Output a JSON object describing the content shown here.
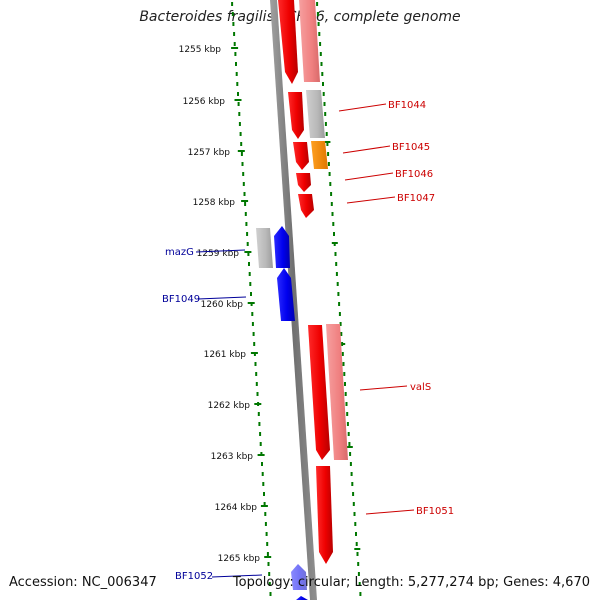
{
  "title": "Bacteroides fragilis YCH46, complete genome",
  "footer": {
    "accession": "Accession: NC_006347",
    "stats": "Topology: circular; Length: 5,277,274 bp; Genes: 4,670"
  },
  "ticks": [
    "1255 kbp",
    "1256 kbp",
    "1257 kbp",
    "1258 kbp",
    "1259 kbp",
    "1260 kbp",
    "1261 kbp",
    "1262 kbp",
    "1263 kbp",
    "1264 kbp",
    "1265 kbp"
  ],
  "genes": [
    {
      "label": "BF1044",
      "strand": "forward",
      "color": "#cc0000"
    },
    {
      "label": "BF1045",
      "strand": "forward",
      "color": "#cc0000"
    },
    {
      "label": "BF1046",
      "strand": "forward",
      "color": "#cc0000"
    },
    {
      "label": "BF1047",
      "strand": "forward",
      "color": "#cc0000"
    },
    {
      "label": "mazG",
      "strand": "reverse",
      "color": "#000099"
    },
    {
      "label": "BF1049",
      "strand": "reverse",
      "color": "#000099"
    },
    {
      "label": "valS",
      "strand": "forward",
      "color": "#cc0000"
    },
    {
      "label": "BF1051",
      "strand": "forward",
      "color": "#cc0000"
    },
    {
      "label": "BF1052",
      "strand": "reverse",
      "color": "#000099"
    }
  ],
  "colors": {
    "forward_gene": "#ff0000",
    "reverse_gene": "#0000ff",
    "forward_label": "#cc0000",
    "reverse_label": "#000099",
    "tick_dots": "#007700",
    "backbone": "#808080",
    "cog_pink": "#f08080",
    "cog_gray": "#b8b8b8",
    "cog_orange": "#ff8c00"
  }
}
